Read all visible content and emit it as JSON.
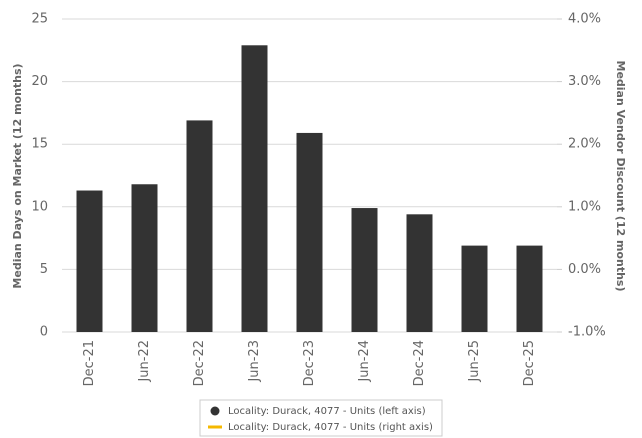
{
  "chart_data": {
    "type": "bar",
    "y_label": "Median Days on Market (12 months)",
    "y2_label": "Median Vendor Discount (12 months)",
    "categories": [
      "Dec-21",
      "Jun-22",
      "Dec-22",
      "Jun-23",
      "Dec-23",
      "Jun-24",
      "Dec-24",
      "Jun-25",
      "Dec-25"
    ],
    "series": [
      {
        "name": "Locality: Durack, 4077 - Units (left axis)",
        "color": "#333333",
        "values": [
          11.3,
          11.8,
          16.9,
          22.9,
          15.9,
          9.9,
          9.4,
          6.9,
          6.9
        ]
      },
      {
        "name": "Locality: Durack, 4077 - Units (right axis)",
        "color": "#f5b800",
        "axis": "y2",
        "values": [
          null,
          null,
          null,
          null,
          null,
          null,
          null,
          null,
          null
        ]
      }
    ],
    "ylim": [
      0,
      25
    ],
    "yticks": [
      0,
      5,
      10,
      15,
      20,
      25
    ],
    "y2lim": [
      -1,
      4
    ],
    "y2ticks": [
      {
        "value": -1,
        "label": "-1.0%"
      },
      {
        "value": 0,
        "label": "0.0%"
      },
      {
        "value": 1,
        "label": "1.0%"
      },
      {
        "value": 2,
        "label": "2.0%"
      },
      {
        "value": 3,
        "label": "3.0%"
      },
      {
        "value": 4,
        "label": "4.0%"
      }
    ],
    "grid": true
  }
}
